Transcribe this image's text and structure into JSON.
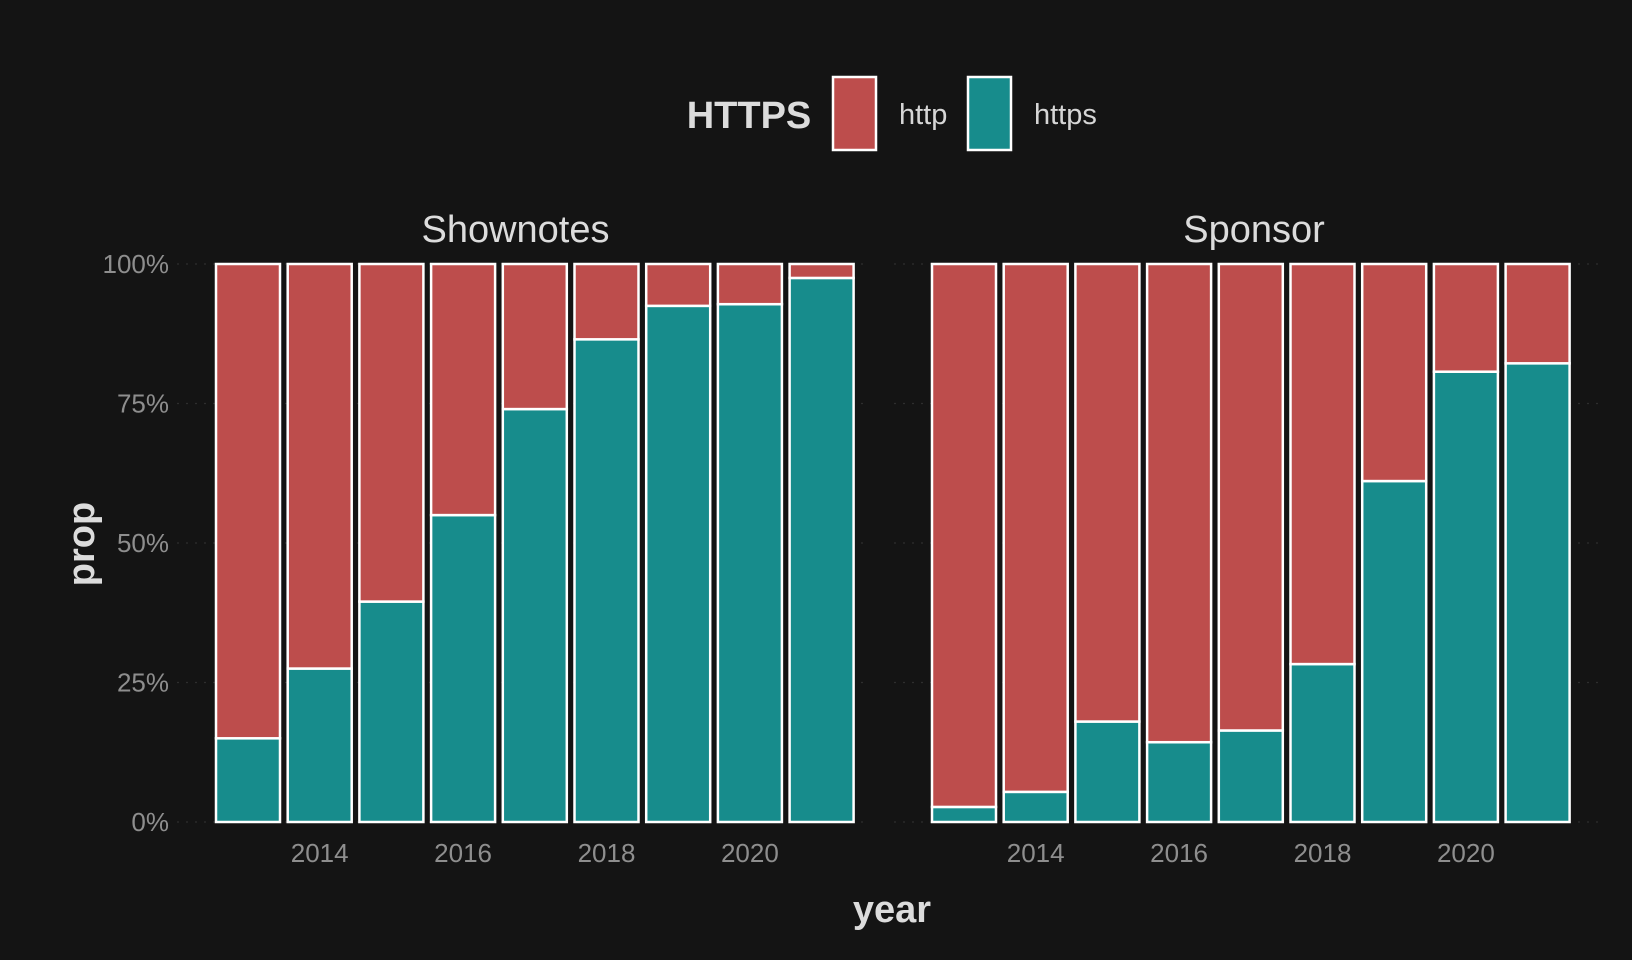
{
  "chart_data": {
    "type": "bar",
    "stacked": "proportion",
    "xlabel": "year",
    "ylabel": "prop",
    "ylim": [
      0,
      1
    ],
    "yticks": [
      0,
      0.25,
      0.5,
      0.75,
      1
    ],
    "ytick_labels": [
      "0%",
      "25%",
      "50%",
      "75%",
      "100%"
    ],
    "xticks": [
      2014,
      2016,
      2018,
      2020
    ],
    "xtick_labels": [
      "2014",
      "2016",
      "2018",
      "2020"
    ],
    "grid": true,
    "legend": {
      "title": "HTTPS",
      "position": "top",
      "entries": [
        {
          "label": "http",
          "color": "#bd4d4c"
        },
        {
          "label": "https",
          "color": "#178c8c"
        }
      ]
    },
    "facets": [
      {
        "title": "Shownotes",
        "categories": [
          2013,
          2014,
          2015,
          2016,
          2017,
          2018,
          2019,
          2020,
          2021
        ],
        "series": [
          {
            "name": "https",
            "values": [
              0.15,
              0.275,
              0.395,
              0.55,
              0.74,
              0.865,
              0.925,
              0.928,
              0.975
            ]
          },
          {
            "name": "http",
            "values": [
              0.85,
              0.725,
              0.605,
              0.45,
              0.26,
              0.135,
              0.075,
              0.072,
              0.025
            ]
          }
        ]
      },
      {
        "title": "Sponsor",
        "categories": [
          2013,
          2014,
          2015,
          2016,
          2017,
          2018,
          2019,
          2020,
          2021
        ],
        "series": [
          {
            "name": "https",
            "values": [
              0.027,
              0.054,
              0.18,
              0.143,
              0.164,
              0.283,
              0.611,
              0.807,
              0.822
            ]
          },
          {
            "name": "http",
            "values": [
              0.973,
              0.946,
              0.82,
              0.857,
              0.836,
              0.717,
              0.389,
              0.193,
              0.178
            ]
          }
        ]
      }
    ]
  }
}
